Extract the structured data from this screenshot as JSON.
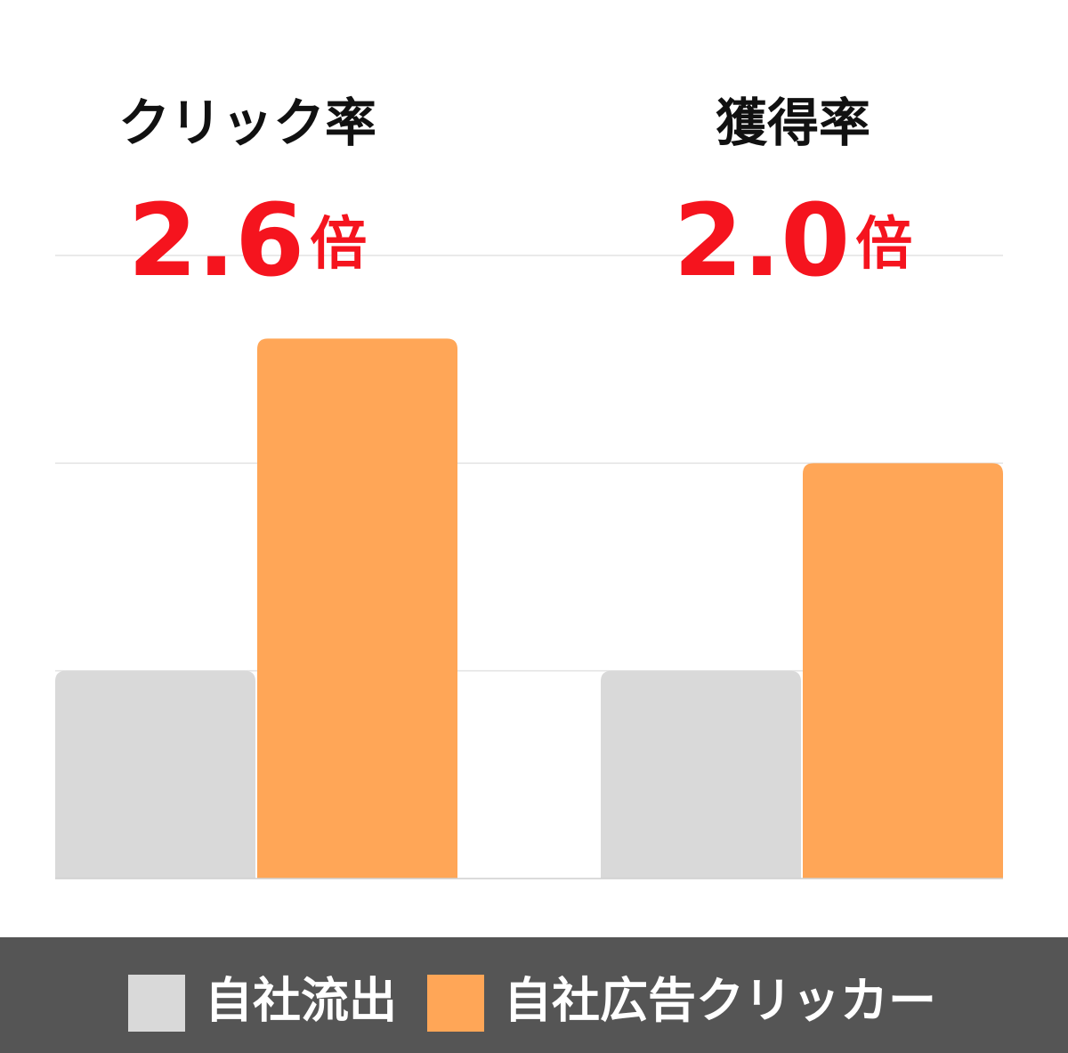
{
  "chart_data": {
    "type": "bar",
    "categories": [
      "クリック率",
      "獲得率"
    ],
    "annotations": [
      {
        "number": "2.6",
        "unit": "倍"
      },
      {
        "number": "2.0",
        "unit": "倍"
      }
    ],
    "series": [
      {
        "name": "自社流出",
        "color": "#d9d9d9",
        "values": [
          1,
          1
        ]
      },
      {
        "name": "自社広告クリッカー",
        "color": "#ffa657",
        "values": [
          2.6,
          2.0
        ]
      }
    ],
    "ylim": [
      0,
      3
    ],
    "yticks": [
      1,
      2,
      3
    ],
    "grid": true,
    "annotation_color": "#f5141e",
    "legend": "bottom"
  }
}
